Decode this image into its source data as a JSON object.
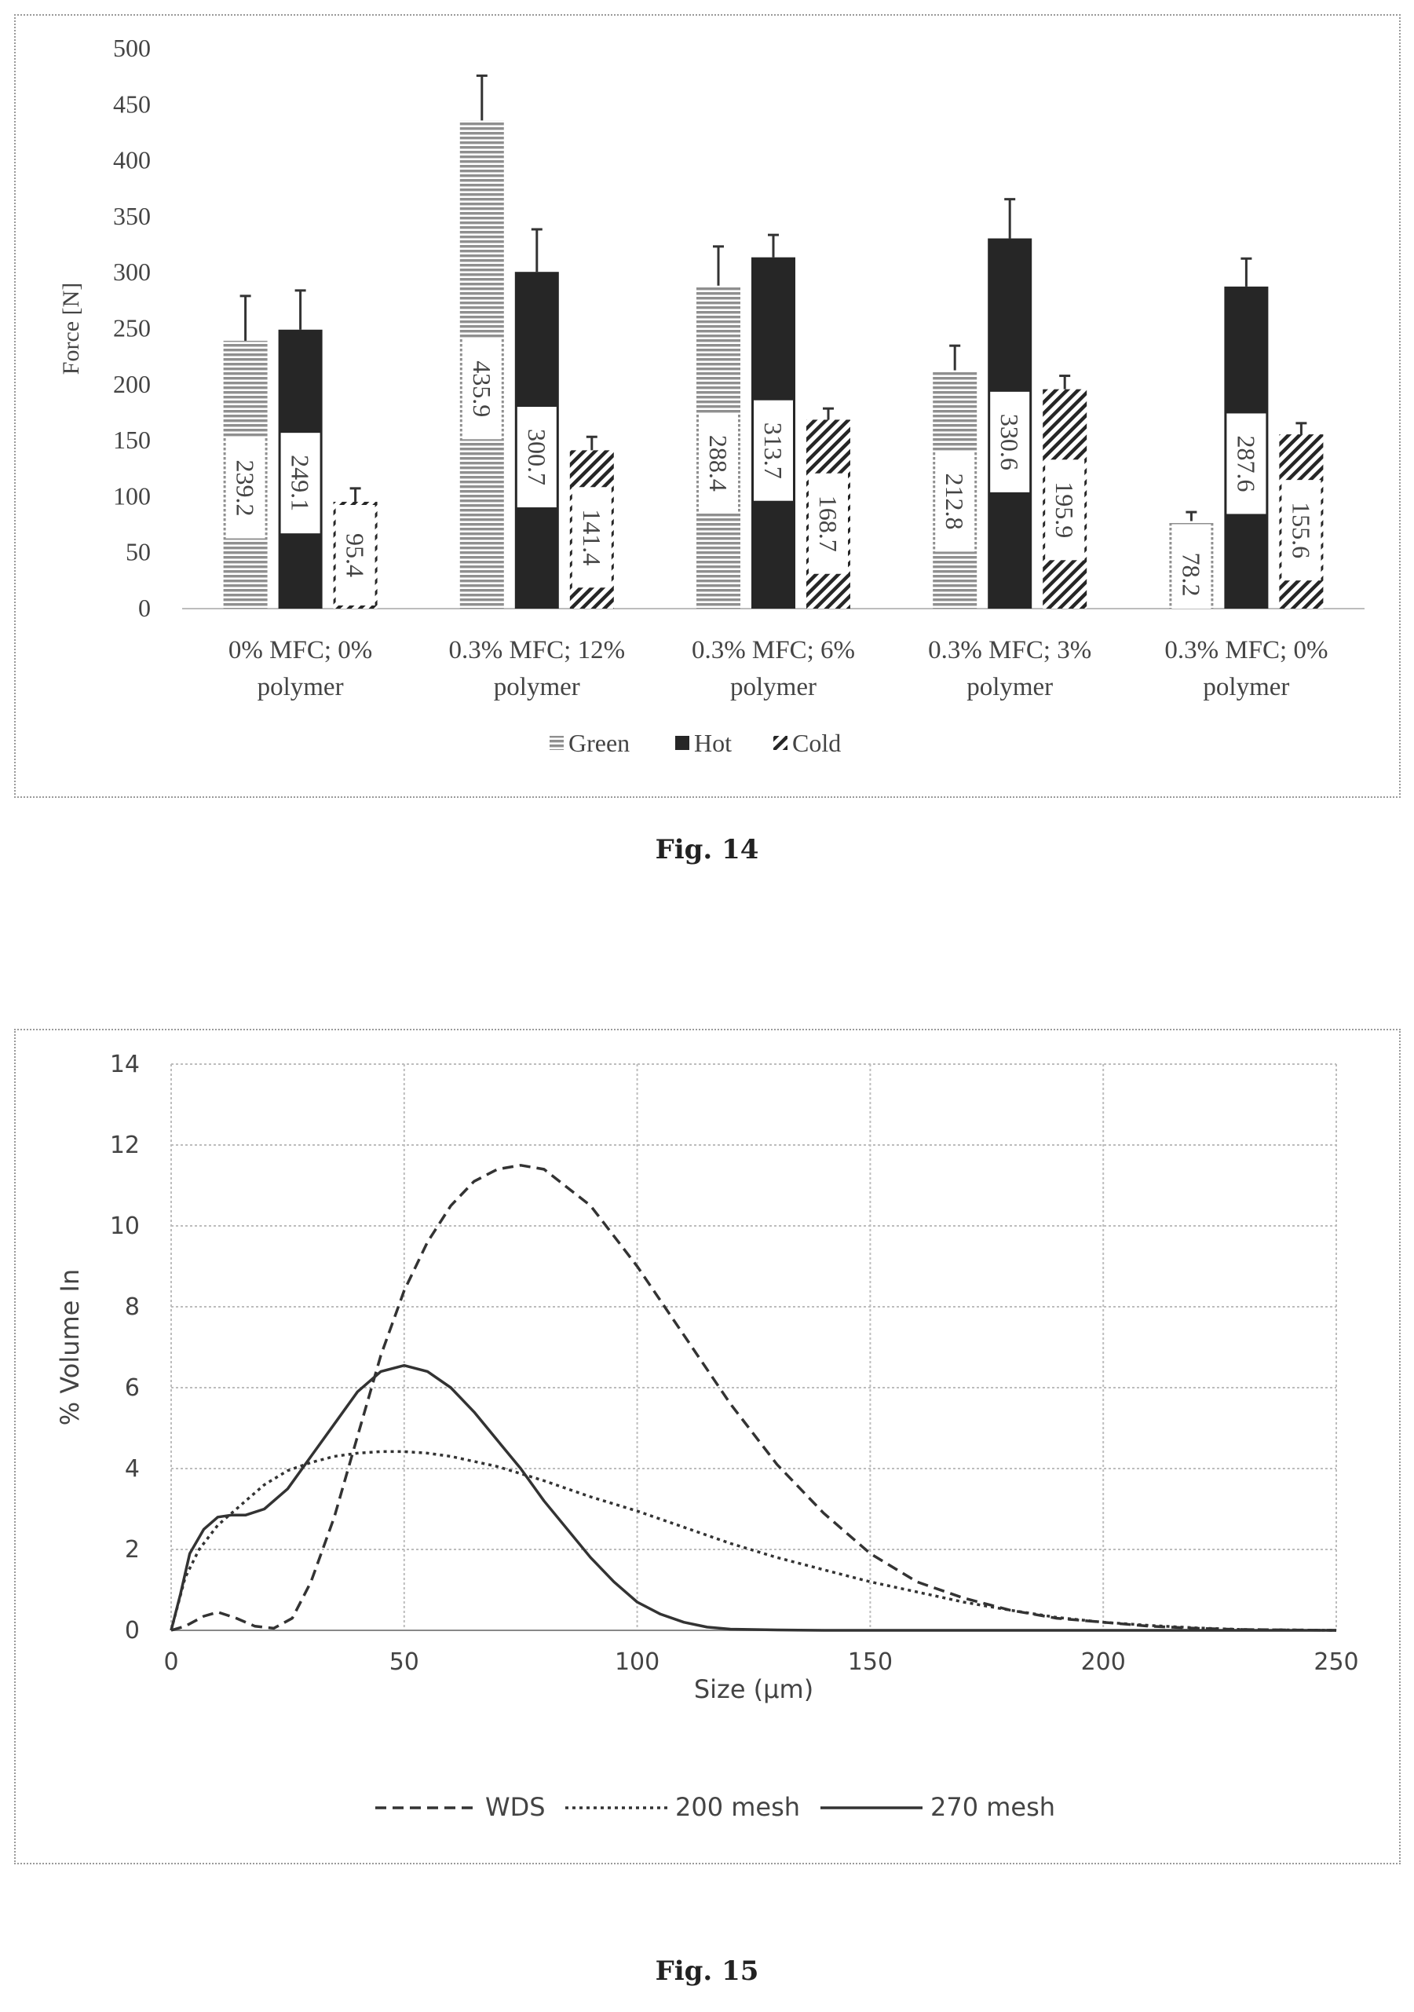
{
  "figures": {
    "fig14_caption": "Fig. 14",
    "fig15_caption": "Fig. 15"
  },
  "colors": {
    "green_series": "#8f8f8f",
    "hot_series": "#262626",
    "cold_series": "#262626",
    "grid": "#bdbdbd",
    "axis": "#888888"
  },
  "chart_data": [
    {
      "type": "bar",
      "title": "",
      "xlabel": "",
      "ylabel": "Force [N]",
      "ylim": [
        0,
        500
      ],
      "yticks": [
        0,
        50,
        100,
        150,
        200,
        250,
        300,
        350,
        400,
        450,
        500
      ],
      "grid": false,
      "legend_position": "bottom",
      "categories": [
        [
          "0% MFC; 0%",
          "polymer"
        ],
        [
          "0.3% MFC; 12%",
          "polymer"
        ],
        [
          "0.3% MFC; 6%",
          "polymer"
        ],
        [
          "0.3% MFC; 3%",
          "polymer"
        ],
        [
          "0.3% MFC; 0%",
          "polymer"
        ]
      ],
      "series": [
        {
          "name": "Green",
          "pattern": "horizontal-lines",
          "values": [
            239.2,
            435.9,
            288.4,
            212.8,
            78.2
          ],
          "labels": [
            "239.2",
            "435.9",
            "288.4",
            "212.8",
            "78.2"
          ],
          "error": [
            40,
            40,
            35,
            22,
            8
          ]
        },
        {
          "name": "Hot",
          "pattern": "solid",
          "values": [
            249.1,
            300.7,
            313.7,
            330.6,
            287.6
          ],
          "labels": [
            "249.1",
            "300.7",
            "313.7",
            "330.6",
            "287.6"
          ],
          "error": [
            35,
            38,
            20,
            35,
            25
          ]
        },
        {
          "name": "Cold",
          "pattern": "diagonal-lines",
          "values": [
            95.4,
            141.4,
            168.7,
            195.9,
            155.6
          ],
          "labels": [
            "95.4",
            "141.4",
            "168.7",
            "195.9",
            "155.6"
          ],
          "error": [
            12,
            12,
            10,
            12,
            10
          ]
        }
      ]
    },
    {
      "type": "line",
      "title": "",
      "xlabel": "Size (µm)",
      "ylabel": "% Volume In",
      "xlim": [
        0,
        250
      ],
      "ylim": [
        0,
        14
      ],
      "xticks": [
        0,
        50,
        100,
        150,
        200,
        250
      ],
      "yticks": [
        0,
        2,
        4,
        6,
        8,
        10,
        12,
        14
      ],
      "grid": true,
      "legend_position": "bottom",
      "series": [
        {
          "name": "WDS",
          "style": "dashed",
          "x": [
            0,
            3,
            7,
            10,
            14,
            18,
            22,
            26,
            30,
            35,
            40,
            45,
            50,
            55,
            60,
            65,
            70,
            75,
            80,
            90,
            100,
            110,
            120,
            130,
            140,
            150,
            160,
            170,
            180,
            190,
            200,
            210,
            220,
            230,
            240,
            250
          ],
          "y": [
            0,
            0.1,
            0.35,
            0.45,
            0.3,
            0.1,
            0.05,
            0.3,
            1.2,
            2.8,
            4.8,
            6.8,
            8.4,
            9.6,
            10.5,
            11.1,
            11.4,
            11.5,
            11.4,
            10.5,
            9.0,
            7.3,
            5.6,
            4.1,
            2.9,
            1.9,
            1.2,
            0.8,
            0.5,
            0.3,
            0.2,
            0.1,
            0.05,
            0.02,
            0.01,
            0
          ]
        },
        {
          "name": "200 mesh",
          "style": "dotted",
          "x": [
            0,
            3,
            6,
            10,
            15,
            20,
            25,
            30,
            35,
            40,
            45,
            50,
            55,
            60,
            70,
            80,
            90,
            100,
            110,
            120,
            130,
            140,
            150,
            160,
            170,
            180,
            190,
            200,
            210,
            220,
            230,
            240,
            250
          ],
          "y": [
            0,
            1.3,
            2.0,
            2.6,
            3.1,
            3.6,
            3.95,
            4.15,
            4.3,
            4.38,
            4.42,
            4.42,
            4.38,
            4.3,
            4.05,
            3.7,
            3.3,
            2.95,
            2.55,
            2.15,
            1.8,
            1.5,
            1.2,
            0.95,
            0.7,
            0.5,
            0.32,
            0.2,
            0.12,
            0.06,
            0.02,
            0.01,
            0
          ]
        },
        {
          "name": "270 mesh",
          "style": "solid",
          "x": [
            0,
            2,
            4,
            7,
            10,
            13,
            16,
            20,
            25,
            30,
            35,
            40,
            45,
            50,
            55,
            60,
            65,
            70,
            75,
            80,
            85,
            90,
            95,
            100,
            105,
            110,
            115,
            120,
            130,
            140,
            150,
            175,
            200,
            225,
            250
          ],
          "y": [
            0,
            0.9,
            1.9,
            2.5,
            2.8,
            2.85,
            2.85,
            3.0,
            3.5,
            4.3,
            5.1,
            5.9,
            6.4,
            6.55,
            6.4,
            6.0,
            5.4,
            4.7,
            4.0,
            3.2,
            2.5,
            1.8,
            1.2,
            0.7,
            0.4,
            0.2,
            0.08,
            0.03,
            0.01,
            0,
            0,
            0,
            0,
            0,
            0
          ]
        }
      ]
    }
  ]
}
